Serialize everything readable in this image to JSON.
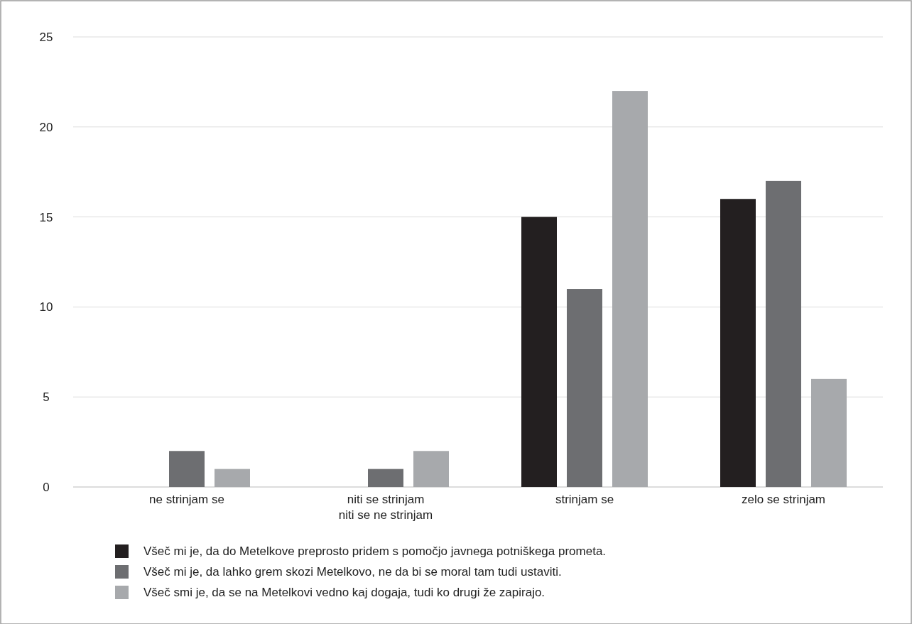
{
  "chart_data": {
    "type": "bar",
    "categories": [
      "ne strinjam se",
      "niti se strinjam\nniti se ne strinjam",
      "strinjam se",
      "zelo se strinjam"
    ],
    "series": [
      {
        "name": "Všeč mi je, da do Metelkove preprosto pridem s pomočjo javnega potniškega prometa.",
        "color": "#231f20",
        "values": [
          0,
          0,
          15,
          16
        ]
      },
      {
        "name": "Všeč mi je, da lahko grem skozi Metelkovo, ne da bi se moral tam tudi ustaviti.",
        "color": "#6d6e71",
        "values": [
          2,
          1,
          11,
          17
        ]
      },
      {
        "name": "Všeč smi je, da se na Metelkovi vedno kaj dogaja, tudi ko drugi že zapirajo.",
        "color": "#a7a9ac",
        "values": [
          1,
          2,
          22,
          6
        ]
      }
    ],
    "ylim": [
      0,
      25
    ],
    "yticks": [
      0,
      5,
      10,
      15,
      20,
      25
    ],
    "grid": "y",
    "legend": "bottom"
  }
}
